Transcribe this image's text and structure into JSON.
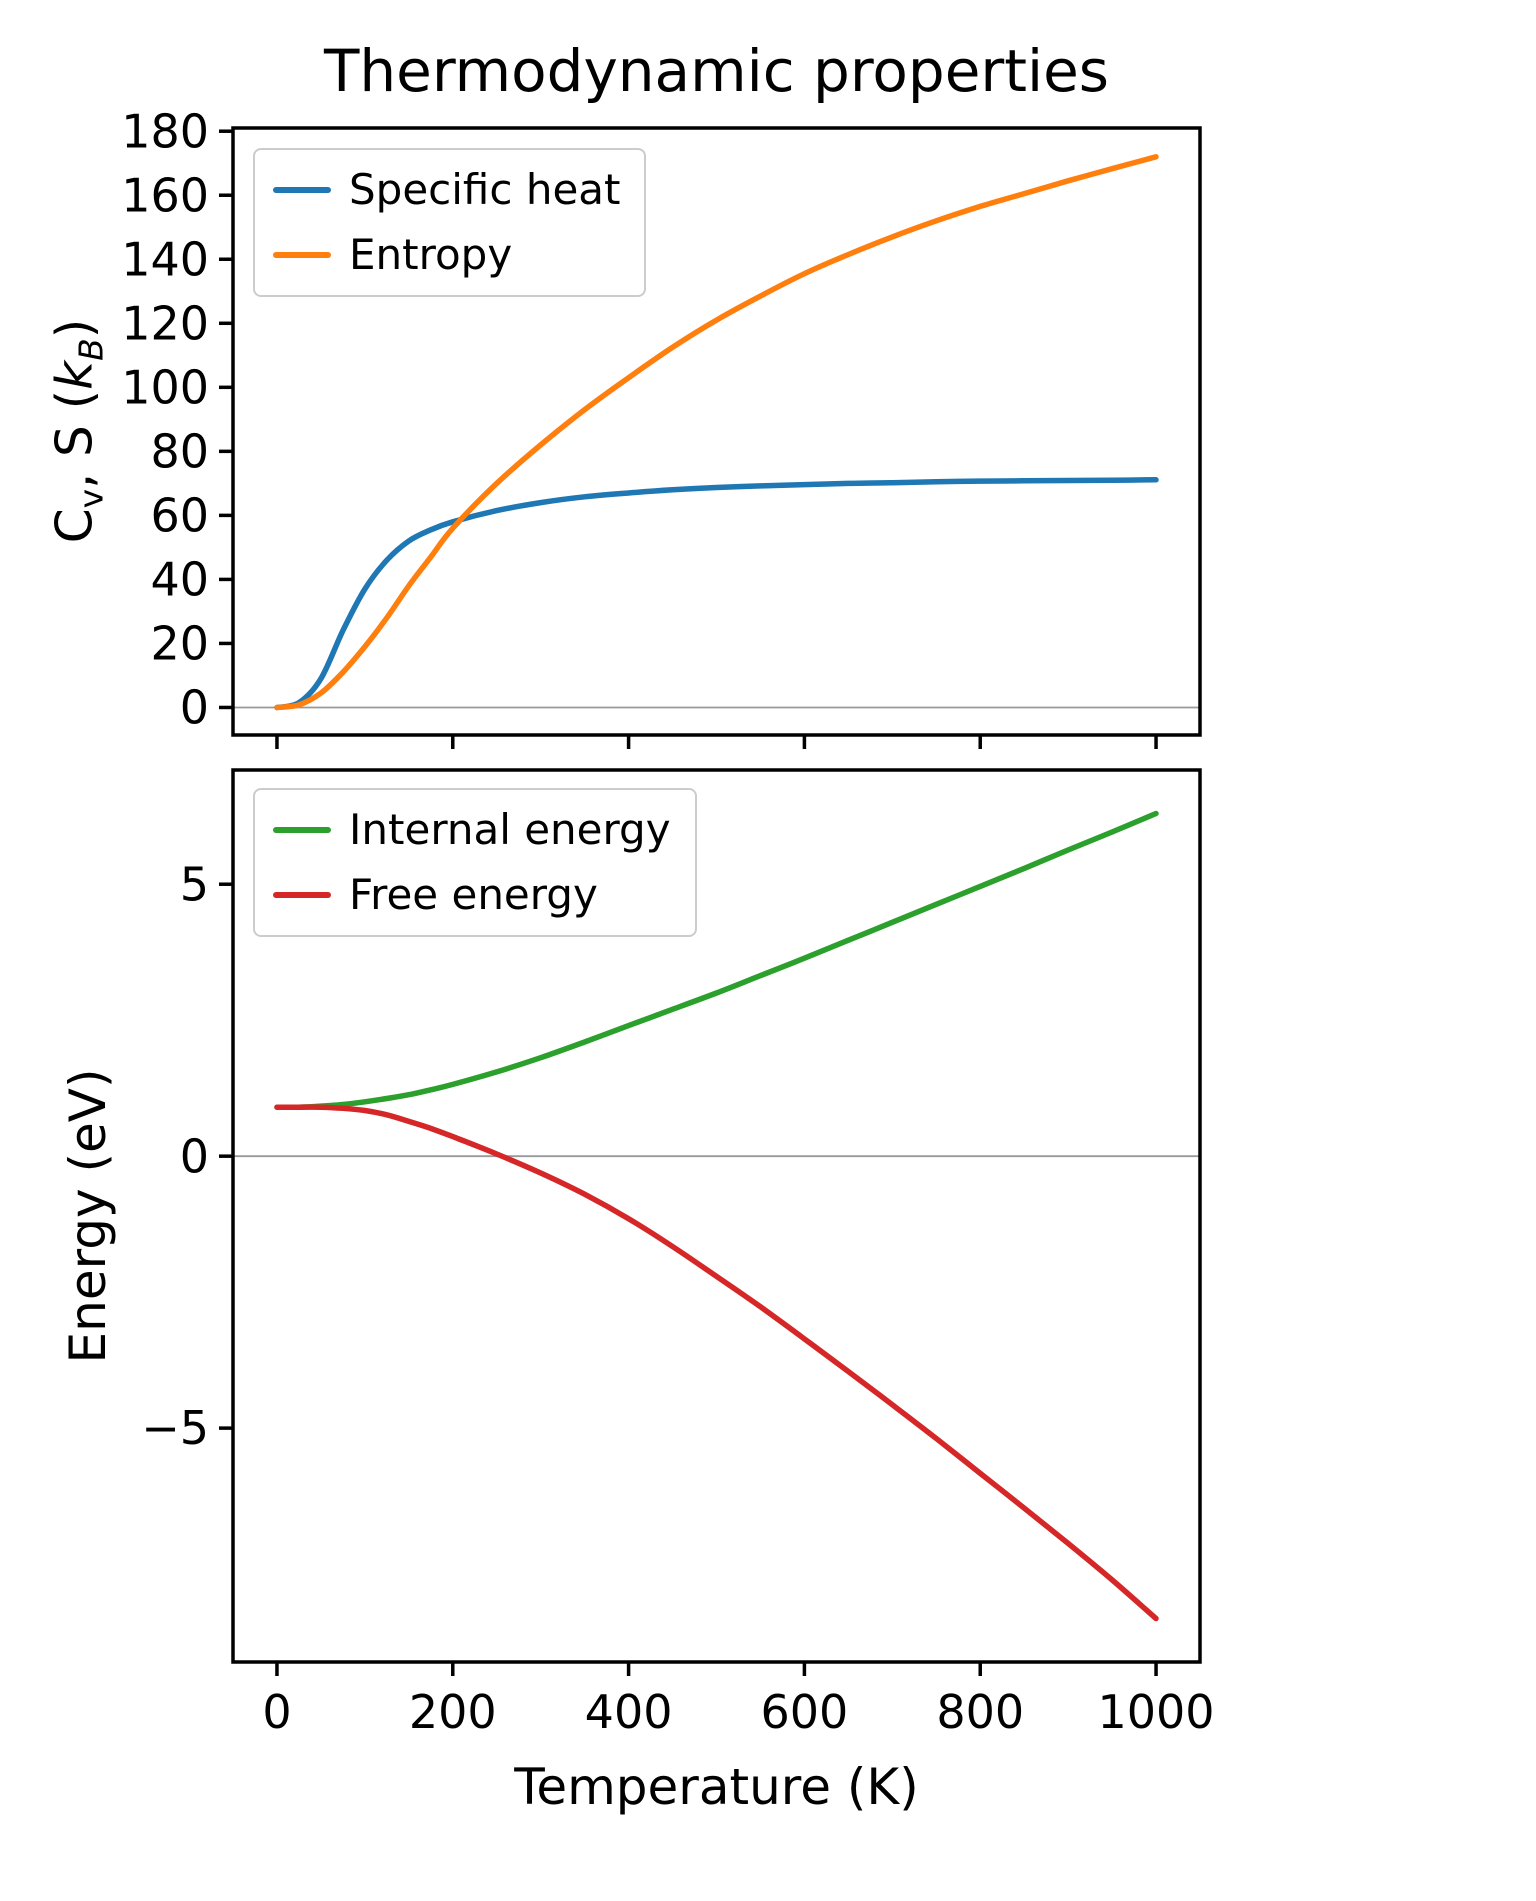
{
  "title": "Thermodynamic properties",
  "xlabel": "Temperature (K)",
  "chart_data": [
    {
      "type": "line",
      "ylabel_text": "Cv, S (kB)",
      "ylabel_parts": {
        "p1": "C",
        "p1sub": "v",
        "p2": ", S (",
        "p3": "k",
        "p3sub": "B",
        "p4": ")"
      },
      "x": [
        0,
        25,
        50,
        75,
        100,
        125,
        150,
        175,
        200,
        250,
        300,
        350,
        400,
        450,
        500,
        550,
        600,
        650,
        700,
        750,
        800,
        850,
        900,
        950,
        1000
      ],
      "series": [
        {
          "name": "Specific heat",
          "color": "#1f77b4",
          "values": [
            0,
            1.5,
            9,
            24,
            37,
            46,
            52,
            55.5,
            58,
            61.5,
            64,
            65.8,
            67,
            68,
            68.7,
            69.2,
            69.6,
            70,
            70.2,
            70.5,
            70.7,
            70.8,
            70.9,
            71,
            71.1
          ]
        },
        {
          "name": "Entropy",
          "color": "#ff7f0e",
          "values": [
            0,
            0.8,
            4.5,
            11,
            19,
            28,
            38,
            47,
            56,
            70,
            82,
            93,
            103,
            112.5,
            121,
            128.5,
            135.5,
            141.5,
            147,
            152,
            156.5,
            160.5,
            164.5,
            168.3,
            172
          ]
        }
      ],
      "xlim": [
        -50,
        1050
      ],
      "ylim": [
        -8.6,
        181
      ],
      "xticks": [
        0,
        200,
        400,
        600,
        800,
        1000
      ],
      "yticks": [
        0,
        20,
        40,
        60,
        80,
        100,
        120,
        140,
        160,
        180
      ],
      "show_xticklabels": false,
      "grid": false,
      "zero_line": true,
      "legend_position": "upper left"
    },
    {
      "type": "line",
      "ylabel": "Energy (eV)",
      "x": [
        0,
        25,
        50,
        75,
        100,
        125,
        150,
        175,
        200,
        250,
        300,
        350,
        400,
        450,
        500,
        550,
        600,
        650,
        700,
        750,
        800,
        850,
        900,
        950,
        1000
      ],
      "series": [
        {
          "name": "Internal energy",
          "color": "#2ca02c",
          "values": [
            0.9,
            0.9,
            0.92,
            0.95,
            1.0,
            1.06,
            1.13,
            1.22,
            1.32,
            1.55,
            1.81,
            2.1,
            2.4,
            2.7,
            3.0,
            3.32,
            3.64,
            3.97,
            4.3,
            4.63,
            4.96,
            5.29,
            5.63,
            5.96,
            6.3
          ]
        },
        {
          "name": "Free energy",
          "color": "#d62728",
          "values": [
            0.9,
            0.9,
            0.9,
            0.88,
            0.84,
            0.76,
            0.64,
            0.51,
            0.36,
            0.04,
            -0.31,
            -0.7,
            -1.15,
            -1.66,
            -2.21,
            -2.77,
            -3.36,
            -3.96,
            -4.57,
            -5.19,
            -5.83,
            -6.47,
            -7.12,
            -7.79,
            -8.5
          ]
        }
      ],
      "xlim": [
        -50,
        1050
      ],
      "ylim": [
        -9.3,
        7.1
      ],
      "xticks": [
        0,
        200,
        400,
        600,
        800,
        1000
      ],
      "yticks": [
        -5,
        0,
        5
      ],
      "show_xticklabels": true,
      "grid": false,
      "zero_line": true,
      "legend_position": "upper left"
    }
  ]
}
